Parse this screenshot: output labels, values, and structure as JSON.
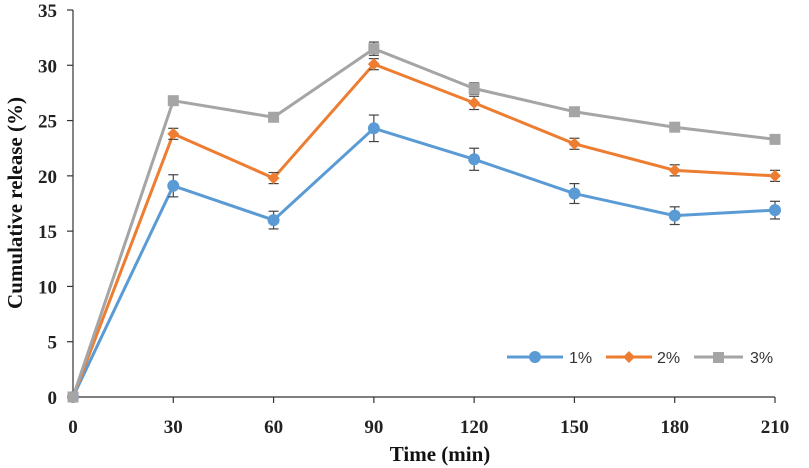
{
  "chart_data": {
    "type": "line",
    "title": "",
    "xlabel": "Time (min)",
    "ylabel": "Cumulative release (%)",
    "x": [
      0,
      30,
      60,
      90,
      120,
      150,
      180,
      210
    ],
    "x_tick_labels": [
      "0",
      "30",
      "60",
      "90",
      "120",
      "150",
      "180",
      "210"
    ],
    "y_tick_labels": [
      "0",
      "5",
      "10",
      "15",
      "20",
      "25",
      "30",
      "35"
    ],
    "xlim": [
      0,
      210
    ],
    "ylim": [
      0,
      35
    ],
    "grid": false,
    "legend_position": "bottom-right",
    "series": [
      {
        "name": "1%",
        "color": "#5b9bd5",
        "marker": "circle",
        "values": [
          0,
          19.1,
          16.0,
          24.3,
          21.5,
          18.4,
          16.4,
          16.9
        ],
        "errors": [
          0.2,
          1.0,
          0.8,
          1.2,
          1.0,
          0.9,
          0.8,
          0.8
        ]
      },
      {
        "name": "2%",
        "color": "#ed7d31",
        "marker": "diamond",
        "values": [
          0,
          23.8,
          19.8,
          30.1,
          26.6,
          22.9,
          20.5,
          20.0
        ],
        "errors": [
          0.2,
          0.5,
          0.5,
          0.5,
          0.6,
          0.5,
          0.5,
          0.5
        ]
      },
      {
        "name": "3%",
        "color": "#a5a5a5",
        "marker": "square",
        "values": [
          0,
          26.8,
          25.3,
          31.5,
          27.9,
          25.8,
          24.4,
          23.3
        ],
        "errors": [
          0.2,
          0.4,
          0.3,
          0.6,
          0.5,
          0.3,
          0.3,
          0.3
        ]
      }
    ]
  }
}
